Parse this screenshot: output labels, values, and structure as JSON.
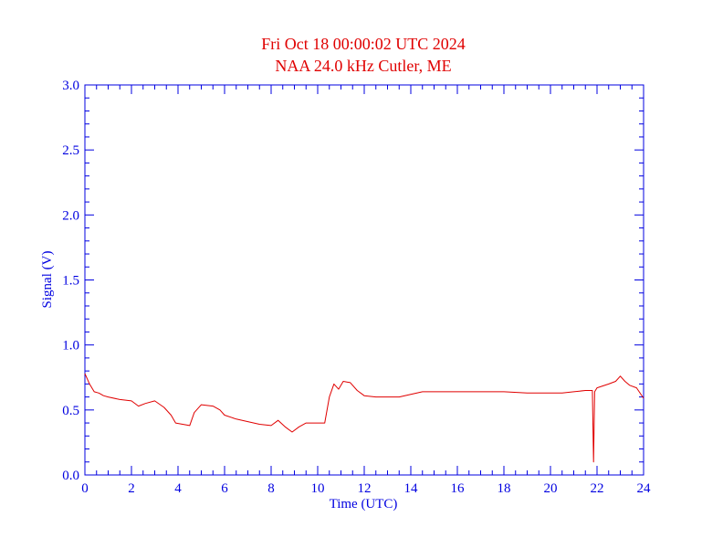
{
  "title_line1": "Fri Oct 18 00:00:02 UTC 2024",
  "title_line2": "NAA 24.0 kHz Cutler, ME",
  "colors": {
    "title": "#e00000",
    "axes": "#0000e0",
    "series": "#e00000",
    "background": "#ffffff"
  },
  "chart_data": {
    "type": "line",
    "title": "Fri Oct 18 00:00:02 UTC 2024",
    "subtitle": "NAA 24.0 kHz Cutler, ME",
    "xlabel": "Time (UTC)",
    "ylabel": "Signal (V)",
    "xlim": [
      0,
      24
    ],
    "ylim": [
      0,
      3.0
    ],
    "xticks": [
      "0",
      "2",
      "4",
      "6",
      "8",
      "10",
      "12",
      "14",
      "16",
      "18",
      "20",
      "22",
      "24"
    ],
    "yticks": [
      "0.0",
      "0.5",
      "1.0",
      "1.5",
      "2.0",
      "2.5",
      "3.0"
    ],
    "grid": false,
    "series": [
      {
        "x": [
          0,
          0.2,
          0.4,
          0.6,
          0.8,
          1.0,
          1.5,
          2.0,
          2.3,
          2.6,
          3.0,
          3.4,
          3.7,
          3.9,
          4.2,
          4.5,
          4.7,
          5.0,
          5.5,
          5.8,
          6.0,
          6.5,
          7.0,
          7.5,
          8.0,
          8.3,
          8.6,
          8.9,
          9.2,
          9.5,
          10.0,
          10.3,
          10.5,
          10.7,
          10.9,
          11.1,
          11.4,
          11.7,
          12.0,
          12.5,
          13.0,
          13.5,
          14.0,
          14.5,
          15.0,
          16.0,
          17.0,
          18.0,
          19.0,
          20.0,
          20.5,
          21.0,
          21.5,
          21.8,
          21.85,
          21.9,
          22.0,
          22.5,
          22.8,
          23.0,
          23.2,
          23.4,
          23.7,
          24.0
        ],
        "y": [
          0.78,
          0.7,
          0.64,
          0.63,
          0.61,
          0.6,
          0.58,
          0.57,
          0.53,
          0.55,
          0.57,
          0.52,
          0.46,
          0.4,
          0.39,
          0.38,
          0.48,
          0.54,
          0.53,
          0.5,
          0.46,
          0.43,
          0.41,
          0.39,
          0.38,
          0.42,
          0.37,
          0.33,
          0.37,
          0.4,
          0.4,
          0.4,
          0.6,
          0.7,
          0.66,
          0.72,
          0.71,
          0.65,
          0.61,
          0.6,
          0.6,
          0.6,
          0.62,
          0.64,
          0.64,
          0.64,
          0.64,
          0.64,
          0.63,
          0.63,
          0.63,
          0.64,
          0.65,
          0.65,
          0.1,
          0.64,
          0.67,
          0.7,
          0.72,
          0.76,
          0.72,
          0.69,
          0.67,
          0.59
        ]
      }
    ]
  }
}
